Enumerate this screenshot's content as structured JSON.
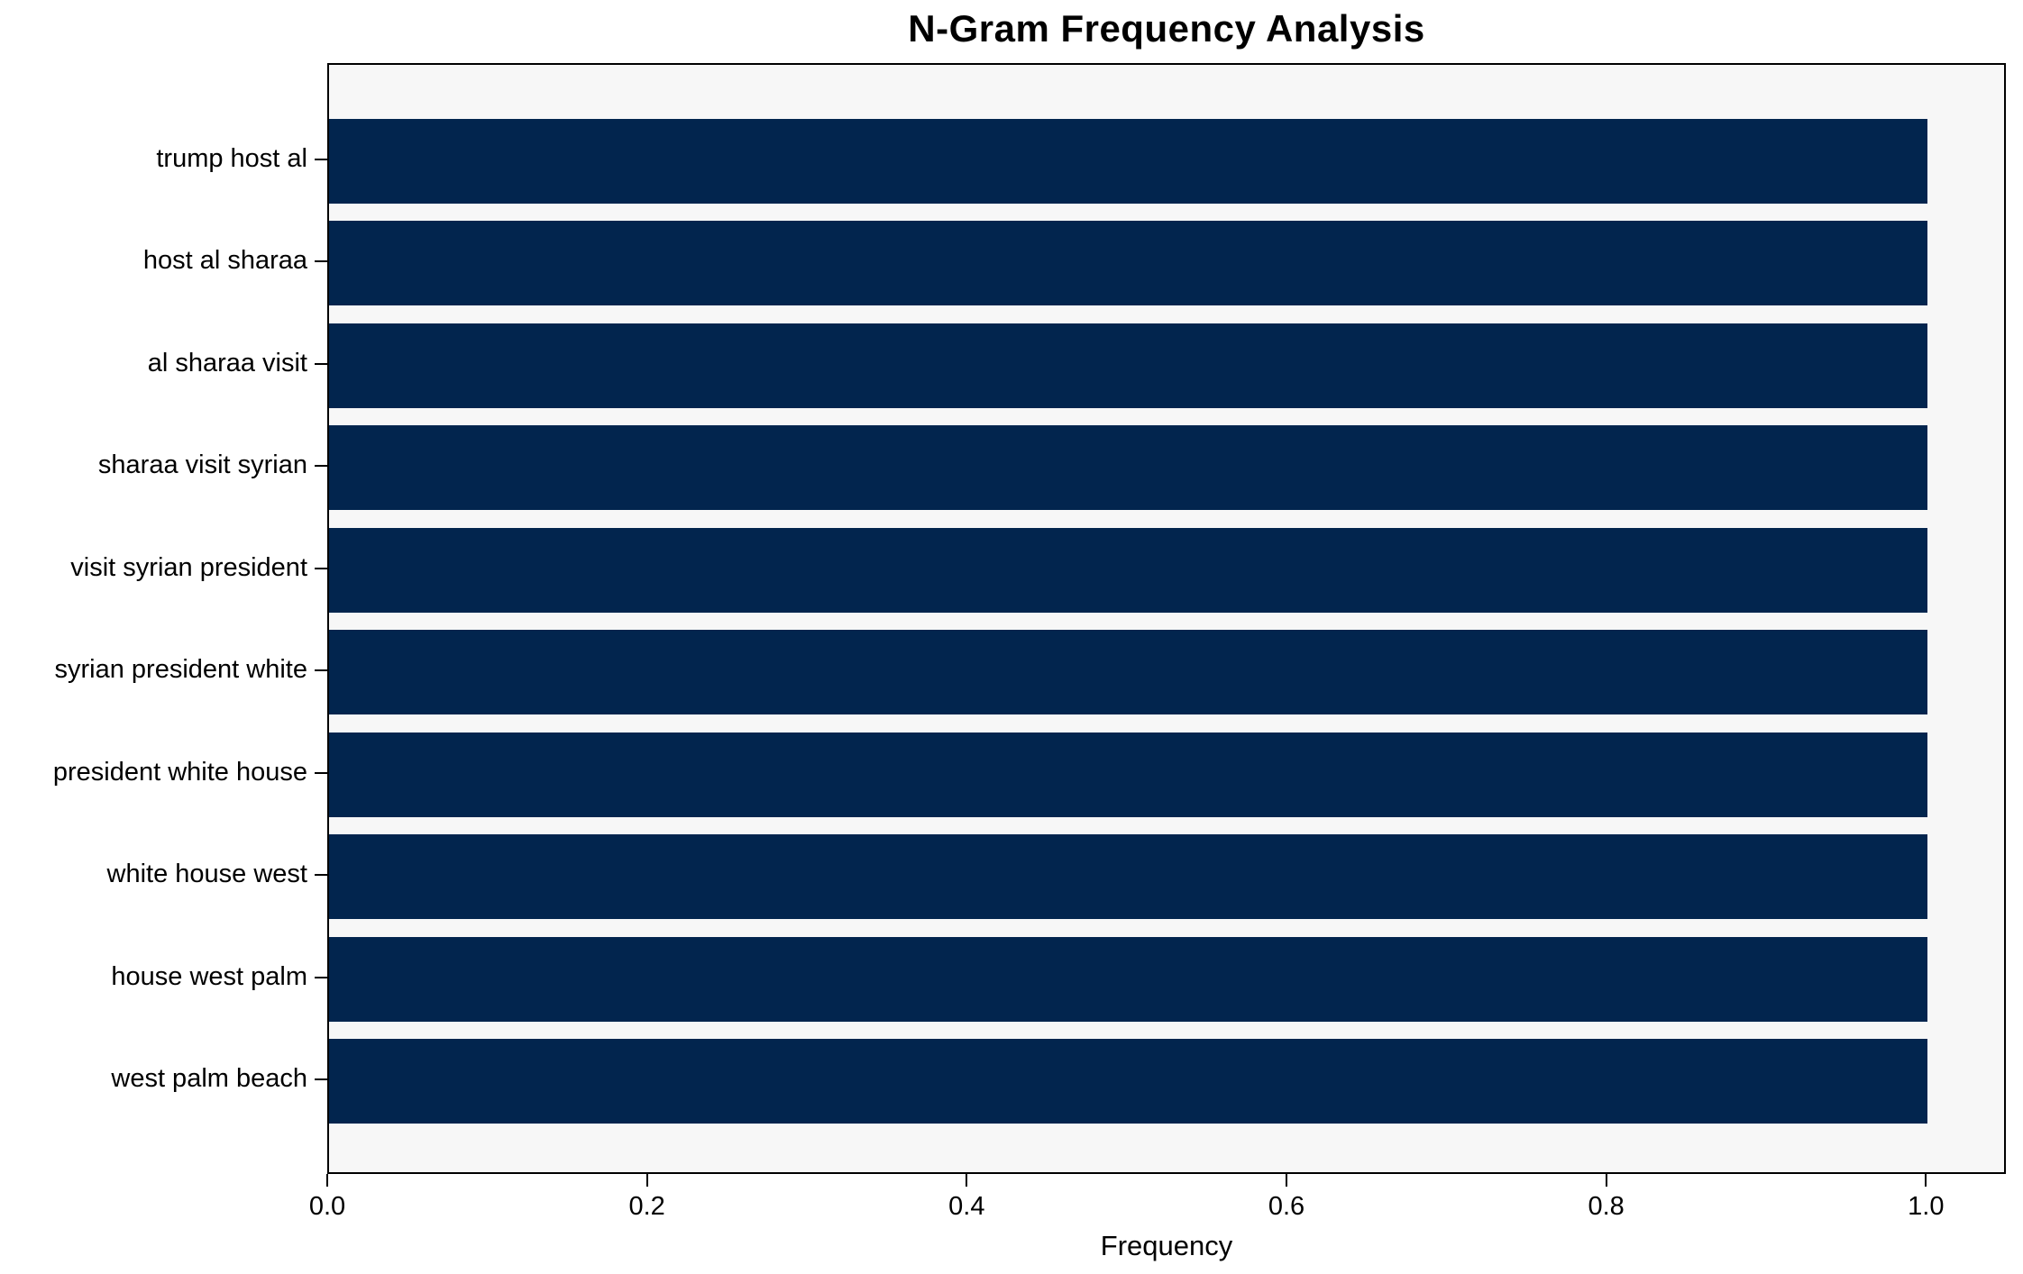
{
  "chart_data": {
    "type": "bar",
    "orientation": "horizontal",
    "title": "N-Gram Frequency Analysis",
    "xlabel": "Frequency",
    "ylabel": "",
    "categories": [
      "trump host al",
      "host al sharaa",
      "al sharaa visit",
      "sharaa visit syrian",
      "visit syrian president",
      "syrian president white",
      "president white house",
      "white house west",
      "house west palm",
      "west palm beach"
    ],
    "values": [
      1.0,
      1.0,
      1.0,
      1.0,
      1.0,
      1.0,
      1.0,
      1.0,
      1.0,
      1.0
    ],
    "x_ticks": [
      0.0,
      0.2,
      0.4,
      0.6,
      0.8,
      1.0
    ],
    "xlim": [
      0,
      1.05
    ],
    "grid": false,
    "legend": "none",
    "bar_color": "#02254e",
    "plot_background": "#f7f7f7",
    "figure_background": "#ffffff",
    "axis_color": "#000000",
    "text_color": "#000000"
  }
}
